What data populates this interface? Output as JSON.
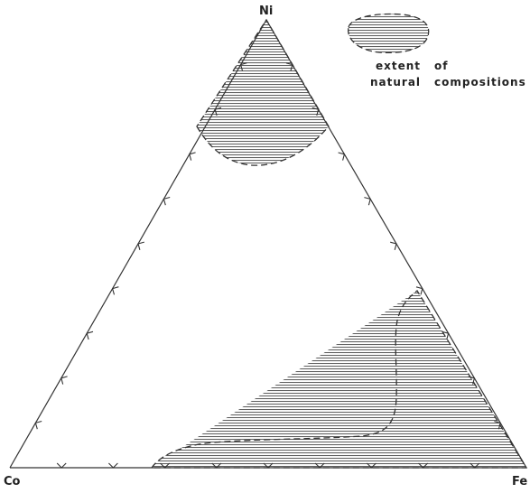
{
  "vertices": {
    "top": "Ni",
    "left": "Co",
    "right": "Fe"
  },
  "legend": {
    "line1_word1": "extent",
    "line1_word2": "of",
    "line2_word1": "natural",
    "line2_word2": "compositions"
  },
  "tick_fractions": [
    0.1,
    0.2,
    0.3,
    0.4,
    0.5,
    0.6,
    0.7,
    0.8,
    0.9
  ],
  "colors": {
    "line": "#333333",
    "hatch": "#444444",
    "background": "#ffffff"
  }
}
